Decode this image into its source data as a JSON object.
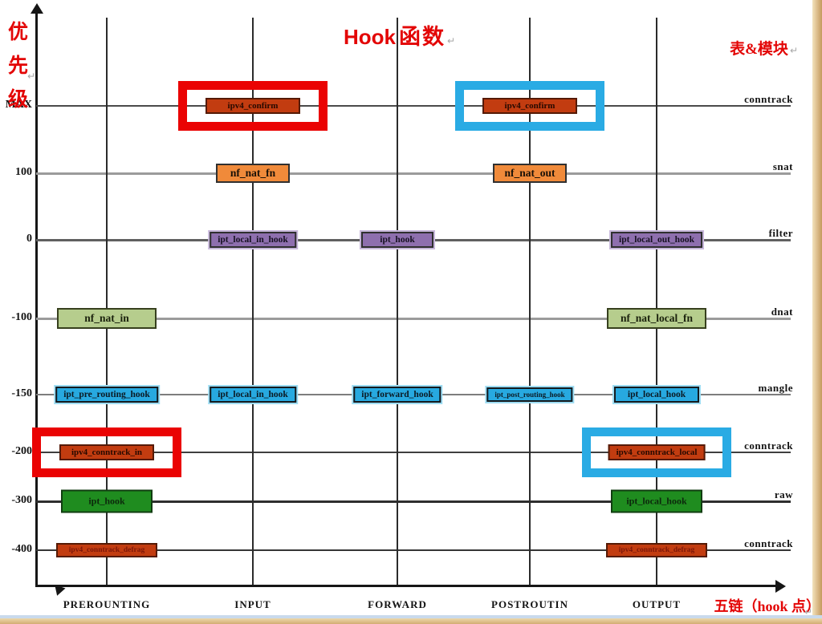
{
  "title": {
    "en": "Hook",
    "zh": "函数"
  },
  "labels": {
    "priority_axis": "优先级",
    "tables_modules": "表&模块",
    "chains_footer": "五链（hook 点）",
    "return_mark": "↵"
  },
  "y_axis": {
    "ticks": [
      "MAX",
      "100",
      "0",
      "-100",
      "-150",
      "-200",
      "-300",
      "-400"
    ]
  },
  "x_axis": {
    "chains": [
      {
        "id": "PREROUTING",
        "label": "PREROUNTING"
      },
      {
        "id": "INPUT",
        "label": "INPUT"
      },
      {
        "id": "FORWARD",
        "label": "FORWARD"
      },
      {
        "id": "POSTROUTING",
        "label": "POSTROUTIN"
      },
      {
        "id": "OUTPUT",
        "label": "OUTPUT"
      }
    ]
  },
  "module_labels": [
    {
      "row": "MAX",
      "label": "conntrack"
    },
    {
      "row": "100",
      "label": "snat"
    },
    {
      "row": "0",
      "label": "filter"
    },
    {
      "row": "-100",
      "label": "dnat"
    },
    {
      "row": "-150",
      "label": "mangle"
    },
    {
      "row": "-200",
      "label": "conntrack"
    },
    {
      "row": "-300",
      "label": "raw"
    },
    {
      "row": "-400",
      "label": "conntrack"
    }
  ],
  "hooks": [
    {
      "label": "ipv4_confirm",
      "chain": "INPUT",
      "row": "MAX",
      "type": "conntrack",
      "highlight": "red"
    },
    {
      "label": "ipv4_confirm",
      "chain": "POSTROUTING",
      "row": "MAX",
      "type": "conntrack",
      "highlight": "cyan"
    },
    {
      "label": "nf_nat_fn",
      "chain": "INPUT",
      "row": "100",
      "type": "nat",
      "highlight": null
    },
    {
      "label": "nf_nat_out",
      "chain": "POSTROUTING",
      "row": "100",
      "type": "nat",
      "highlight": null
    },
    {
      "label": "ipt_local_in_hook",
      "chain": "INPUT",
      "row": "0",
      "type": "filter",
      "highlight": null
    },
    {
      "label": "ipt_hook",
      "chain": "FORWARD",
      "row": "0",
      "type": "filter",
      "highlight": null
    },
    {
      "label": "ipt_local_out_hook",
      "chain": "OUTPUT",
      "row": "0",
      "type": "filter",
      "highlight": null
    },
    {
      "label": "nf_nat_in",
      "chain": "PREROUTING",
      "row": "-100",
      "type": "dnat",
      "highlight": null
    },
    {
      "label": "nf_nat_local_fn",
      "chain": "OUTPUT",
      "row": "-100",
      "type": "dnat",
      "highlight": null
    },
    {
      "label": "ipt_pre_routing_hook",
      "chain": "PREROUTING",
      "row": "-150",
      "type": "mangle",
      "highlight": null
    },
    {
      "label": "ipt_local_in_hook",
      "chain": "INPUT",
      "row": "-150",
      "type": "mangle",
      "highlight": null
    },
    {
      "label": "ipt_forward_hook",
      "chain": "FORWARD",
      "row": "-150",
      "type": "mangle",
      "highlight": null
    },
    {
      "label": "ipt_post_routing_hook",
      "chain": "POSTROUTING",
      "row": "-150",
      "type": "mangle",
      "highlight": null
    },
    {
      "label": "ipt_local_hook",
      "chain": "OUTPUT",
      "row": "-150",
      "type": "mangle",
      "highlight": null
    },
    {
      "label": "ipv4_conntrack_in",
      "chain": "PREROUTING",
      "row": "-200",
      "type": "conntrack",
      "highlight": "red"
    },
    {
      "label": "ipv4_conntrack_local",
      "chain": "OUTPUT",
      "row": "-200",
      "type": "conntrack",
      "highlight": "cyan"
    },
    {
      "label": "ipt_hook",
      "chain": "PREROUTING",
      "row": "-300",
      "type": "raw",
      "highlight": null
    },
    {
      "label": "ipt_local_hook",
      "chain": "OUTPUT",
      "row": "-300",
      "type": "raw",
      "highlight": null
    },
    {
      "label": "ipv4_conntrack_defrag",
      "chain": "PREROUTING",
      "row": "-400",
      "type": "defrag",
      "highlight": null
    },
    {
      "label": "ipv4_conntrack_defrag",
      "chain": "OUTPUT",
      "row": "-400",
      "type": "defrag",
      "highlight": null
    }
  ],
  "colors": {
    "heading_red": "#e30505",
    "accent_red": "#ea0303",
    "accent_cyan": "#2aabe4",
    "conntrack_box": "#c23c10",
    "nat_box": "#f08a3a",
    "filter_box": "#8e6fae",
    "dnat_box": "#b6cd8d",
    "mangle_box": "#27a9e0",
    "raw_box": "#1f8c1f"
  }
}
